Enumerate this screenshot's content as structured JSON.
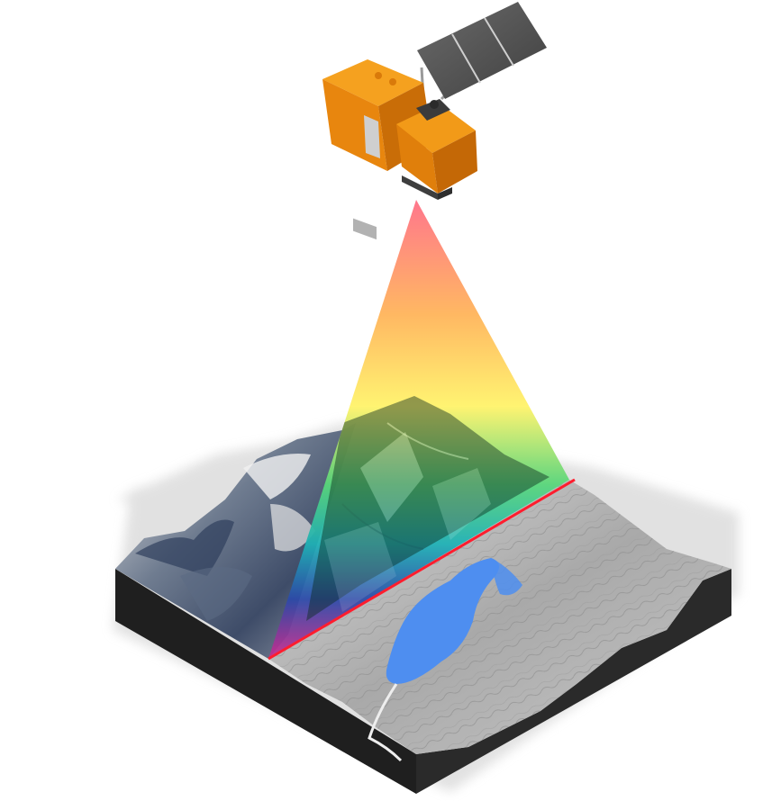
{
  "scene": {
    "subject": "satellite-scanning-terrain",
    "colors": {
      "satellite_body": "#e8860e",
      "satellite_shadow": "#b85e06",
      "satellite_panel": "#5b5b5b",
      "beam_top": "#ff6f86",
      "beam_orange": "#ffb45a",
      "beam_yellow": "#fff36a",
      "beam_green": "#58d67a",
      "beam_cyan": "#1fb0b5",
      "beam_blue": "#2c4aa8",
      "beam_magenta": "#cc2b8e",
      "scan_line": "#ff1d2e",
      "lake": "#4e8ef0",
      "terrain_grey": "#b7b7b7",
      "terrain_dark": "#232323",
      "ground_shadow": "#d8d8d8"
    }
  }
}
